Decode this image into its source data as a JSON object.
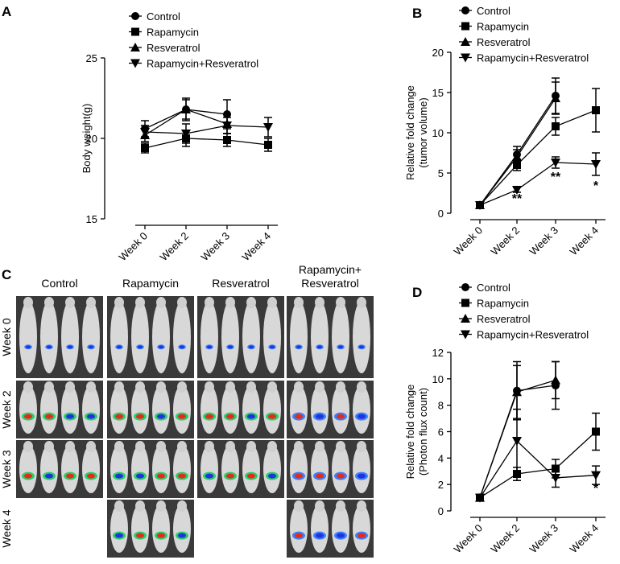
{
  "chart_data": [
    {
      "type": "line",
      "panel": "A",
      "ylabel": [
        "Body weight(g)"
      ],
      "categories": [
        "Week 0",
        "Week 2",
        "Week 3",
        "Week 4"
      ],
      "ylim": [
        15,
        25
      ],
      "yticks": [
        15,
        20,
        25
      ],
      "series": [
        {
          "name": "Control",
          "color": "#000000",
          "marker": "circle",
          "values": [
            20.6,
            21.8,
            21.5,
            null
          ],
          "errors": [
            0.5,
            0.6,
            0.9,
            null
          ]
        },
        {
          "name": "Rapamycin",
          "color": "#000000",
          "marker": "square",
          "values": [
            19.4,
            20.0,
            19.9,
            19.6
          ],
          "errors": [
            0.3,
            0.5,
            0.4,
            0.4
          ]
        },
        {
          "name": "Resveratrol",
          "color": "#000000",
          "marker": "triangle-up",
          "values": [
            20.2,
            21.8,
            20.9,
            null
          ],
          "errors": [
            0.4,
            0.7,
            0.6,
            null
          ]
        },
        {
          "name": "Rapamycin+Resveratrol",
          "color": "#000000",
          "marker": "triangle-down",
          "values": [
            20.4,
            20.3,
            20.8,
            20.7
          ],
          "errors": [
            0.4,
            0.6,
            0.5,
            0.6
          ]
        }
      ]
    },
    {
      "type": "line",
      "panel": "B",
      "ylabel": [
        "Relative fold change",
        "(tumor volume)"
      ],
      "categories": [
        "Week 0",
        "Week 2",
        "Week 3",
        "Week 4"
      ],
      "ylim": [
        0,
        20
      ],
      "yticks": [
        0,
        5,
        10,
        15,
        20
      ],
      "series": [
        {
          "name": "Control",
          "color": "#000000",
          "marker": "circle",
          "values": [
            1,
            7.3,
            14.6,
            null
          ],
          "errors": [
            0,
            1.0,
            2.2,
            null
          ]
        },
        {
          "name": "Rapamycin",
          "color": "#000000",
          "marker": "square",
          "values": [
            1,
            6.0,
            10.8,
            12.8
          ],
          "errors": [
            0,
            0.7,
            1.1,
            2.7
          ]
        },
        {
          "name": "Resveratrol",
          "color": "#000000",
          "marker": "triangle-up",
          "values": [
            1,
            7.0,
            14.3,
            null
          ],
          "errors": [
            0,
            0.9,
            2.0,
            null
          ]
        },
        {
          "name": "Rapamycin+Resveratrol",
          "color": "#000000",
          "marker": "triangle-down",
          "values": [
            1,
            2.9,
            6.3,
            6.1
          ],
          "errors": [
            0,
            0.3,
            0.7,
            1.4
          ]
        }
      ],
      "annotations": [
        "**",
        "**",
        "*"
      ]
    },
    {
      "type": "line",
      "panel": "D",
      "ylabel": [
        "Relative fold change",
        "(Photon flux count)"
      ],
      "categories": [
        "Week 0",
        "Week 2",
        "Week 3",
        "Week 4"
      ],
      "ylim": [
        0,
        12
      ],
      "yticks": [
        0,
        2,
        4,
        6,
        8,
        10,
        12
      ],
      "series": [
        {
          "name": "Control",
          "color": "#000000",
          "marker": "circle",
          "values": [
            1,
            9.1,
            9.5,
            null
          ],
          "errors": [
            0,
            2.2,
            1.8,
            null
          ]
        },
        {
          "name": "Rapamycin",
          "color": "#000000",
          "marker": "square",
          "values": [
            1,
            2.8,
            3.2,
            6.0
          ],
          "errors": [
            0,
            0.5,
            0.7,
            1.4
          ]
        },
        {
          "name": "Resveratrol",
          "color": "#000000",
          "marker": "triangle-up",
          "values": [
            1,
            9.0,
            9.9,
            null
          ],
          "errors": [
            0,
            2.0,
            1.4,
            null
          ]
        },
        {
          "name": "Rapamycin+Resveratrol",
          "color": "#000000",
          "marker": "triangle-down",
          "values": [
            1,
            5.3,
            2.5,
            2.7
          ],
          "errors": [
            0,
            2.4,
            0.7,
            0.7
          ]
        }
      ],
      "annotations": [
        "*"
      ]
    }
  ],
  "imaging": {
    "panel": "C",
    "columns": [
      [
        "Control"
      ],
      [
        "Rapamycin"
      ],
      [
        "Resveratrol"
      ],
      [
        "Rapamycin+",
        "Resveratrol"
      ]
    ],
    "rows": [
      "Week 0",
      "Week 2",
      "Week 3",
      "Week 4"
    ]
  }
}
